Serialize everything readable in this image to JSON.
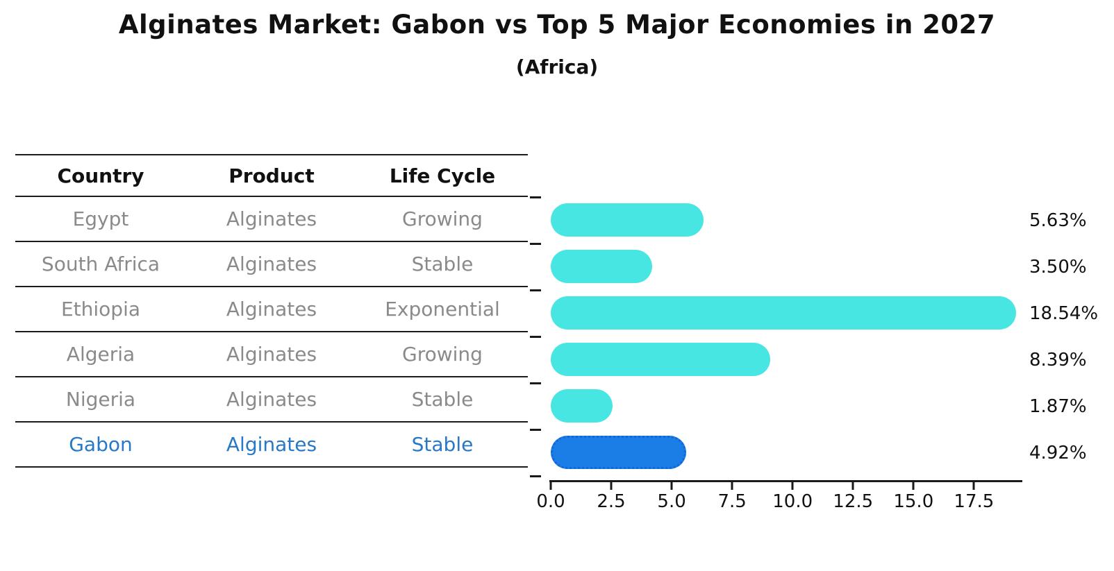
{
  "title": "Alginates Market: Gabon vs Top 5 Major Economies in 2027",
  "subtitle": "(Africa)",
  "table": {
    "headers": [
      "Country",
      "Product",
      "Life Cycle"
    ],
    "rows": [
      {
        "country": "Egypt",
        "product": "Alginates",
        "life_cycle": "Growing",
        "highlight": false
      },
      {
        "country": "South Africa",
        "product": "Alginates",
        "life_cycle": "Stable",
        "highlight": false
      },
      {
        "country": "Ethiopia",
        "product": "Alginates",
        "life_cycle": "Exponential",
        "highlight": false
      },
      {
        "country": "Algeria",
        "product": "Alginates",
        "life_cycle": "Growing",
        "highlight": false
      },
      {
        "country": "Nigeria",
        "product": "Alginates",
        "life_cycle": "Stable",
        "highlight": false
      },
      {
        "country": "Gabon",
        "product": "Alginates",
        "life_cycle": "Stable",
        "highlight": true
      }
    ]
  },
  "chart_data": {
    "type": "bar",
    "orientation": "horizontal",
    "title": "Alginates Market: Gabon vs Top 5 Major Economies in 2027",
    "subtitle": "(Africa)",
    "categories": [
      "Egypt",
      "South Africa",
      "Ethiopia",
      "Algeria",
      "Nigeria",
      "Gabon"
    ],
    "values": [
      5.63,
      3.5,
      18.54,
      8.39,
      1.87,
      4.92
    ],
    "value_labels": [
      "5.63%",
      "3.50%",
      "18.54%",
      "8.39%",
      "1.87%",
      "4.92%"
    ],
    "x_tick_values": [
      0,
      2.5,
      5,
      7.5,
      10,
      12.5,
      15,
      17.5
    ],
    "x_tick_labels": [
      "0.0",
      "2.5",
      "5.0",
      "7.5",
      "10.0",
      "12.5",
      "15.0",
      "17.5"
    ],
    "xlim": [
      0,
      19.5
    ],
    "grid": false,
    "legend": false,
    "bar_color": "#48e6e2",
    "highlight_bar_color": "#1b7de6",
    "highlight_index": 5
  },
  "colors": {
    "bar_cyan": "#48e6e2",
    "bar_blue": "#1b7de6",
    "bar_blue_border": "#1465d8",
    "table_text_gray": "#8a8a8a",
    "highlight_text_blue": "#2878c8",
    "axis_line": "#1a1a1a",
    "text_black": "#111111"
  }
}
